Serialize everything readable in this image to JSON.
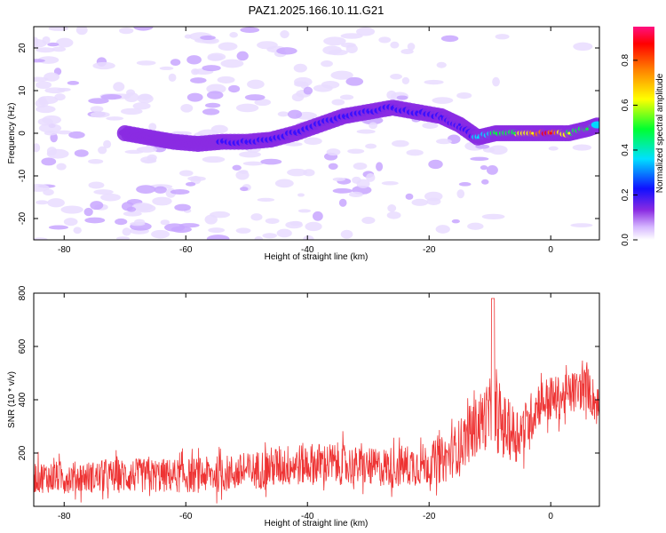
{
  "figure_title": "PAZ1.2025.166.10.11.G21",
  "chart_data": [
    {
      "type": "heatmap",
      "xlabel": "Height of straight line (km)",
      "ylabel": "Frequency (Hz)",
      "xlim": [
        -85,
        8
      ],
      "ylim": [
        -25,
        25
      ],
      "x_ticks": [
        -80,
        -60,
        -40,
        -20,
        0
      ],
      "y_ticks": [
        -20,
        -10,
        0,
        10,
        20
      ],
      "grid": false,
      "colorbar": {
        "label": "Normalized spectral amplitude",
        "range": [
          0,
          0.95
        ],
        "ticks": [
          0.0,
          0.2,
          0.4,
          0.6,
          0.8
        ]
      },
      "signal_ridge": [
        {
          "x": -70,
          "y": 0,
          "level": 0.2
        },
        {
          "x": -66,
          "y": -1,
          "level": 0.2
        },
        {
          "x": -62,
          "y": -2,
          "level": 0.2
        },
        {
          "x": -58,
          "y": -2.5,
          "level": 0.2
        },
        {
          "x": -54,
          "y": -2,
          "level": 0.25
        },
        {
          "x": -50,
          "y": -2,
          "level": 0.3
        },
        {
          "x": -46,
          "y": -1.5,
          "level": 0.35
        },
        {
          "x": -42,
          "y": 0,
          "level": 0.3
        },
        {
          "x": -38,
          "y": 2,
          "level": 0.35
        },
        {
          "x": -34,
          "y": 4,
          "level": 0.35
        },
        {
          "x": -30,
          "y": 5,
          "level": 0.3
        },
        {
          "x": -26,
          "y": 6,
          "level": 0.3
        },
        {
          "x": -22,
          "y": 5,
          "level": 0.3
        },
        {
          "x": -18,
          "y": 4,
          "level": 0.3
        },
        {
          "x": -15,
          "y": 2,
          "level": 0.3
        },
        {
          "x": -12,
          "y": -1,
          "level": 0.4
        },
        {
          "x": -9,
          "y": 0,
          "level": 0.55
        },
        {
          "x": -6,
          "y": 0,
          "level": 0.65
        },
        {
          "x": -3,
          "y": 0,
          "level": 0.8
        },
        {
          "x": 0,
          "y": 0,
          "level": 0.95
        },
        {
          "x": 3,
          "y": 0,
          "level": 0.7
        },
        {
          "x": 6,
          "y": 1,
          "level": 0.6
        },
        {
          "x": 8,
          "y": 2,
          "level": 0.5
        }
      ]
    },
    {
      "type": "line",
      "xlabel": "Height of straight line (km)",
      "ylabel": "SNR (10 * v/v)",
      "xlim": [
        -85,
        8
      ],
      "ylim": [
        0,
        800
      ],
      "x_ticks": [
        -80,
        -60,
        -40,
        -20,
        0
      ],
      "y_ticks": [
        200,
        400,
        600,
        800
      ],
      "grid": false,
      "color": "#ee3333",
      "envelope": {
        "x": [
          -85,
          -80,
          -75,
          -70,
          -65,
          -60,
          -55,
          -50,
          -45,
          -40,
          -35,
          -30,
          -25,
          -20,
          -17,
          -15,
          -13,
          -11,
          -10,
          -9,
          -8,
          -6,
          -4,
          -2,
          0,
          2,
          4,
          6,
          8
        ],
        "mean": [
          110,
          110,
          110,
          115,
          115,
          115,
          120,
          130,
          150,
          160,
          160,
          145,
          150,
          160,
          180,
          230,
          280,
          330,
          340,
          330,
          310,
          270,
          300,
          390,
          400,
          410,
          430,
          450,
          360
        ],
        "spread": [
          60,
          60,
          60,
          65,
          65,
          65,
          70,
          70,
          80,
          80,
          80,
          70,
          80,
          80,
          90,
          100,
          110,
          120,
          140,
          130,
          120,
          110,
          100,
          90,
          90,
          80,
          80,
          80,
          80
        ]
      }
    }
  ]
}
